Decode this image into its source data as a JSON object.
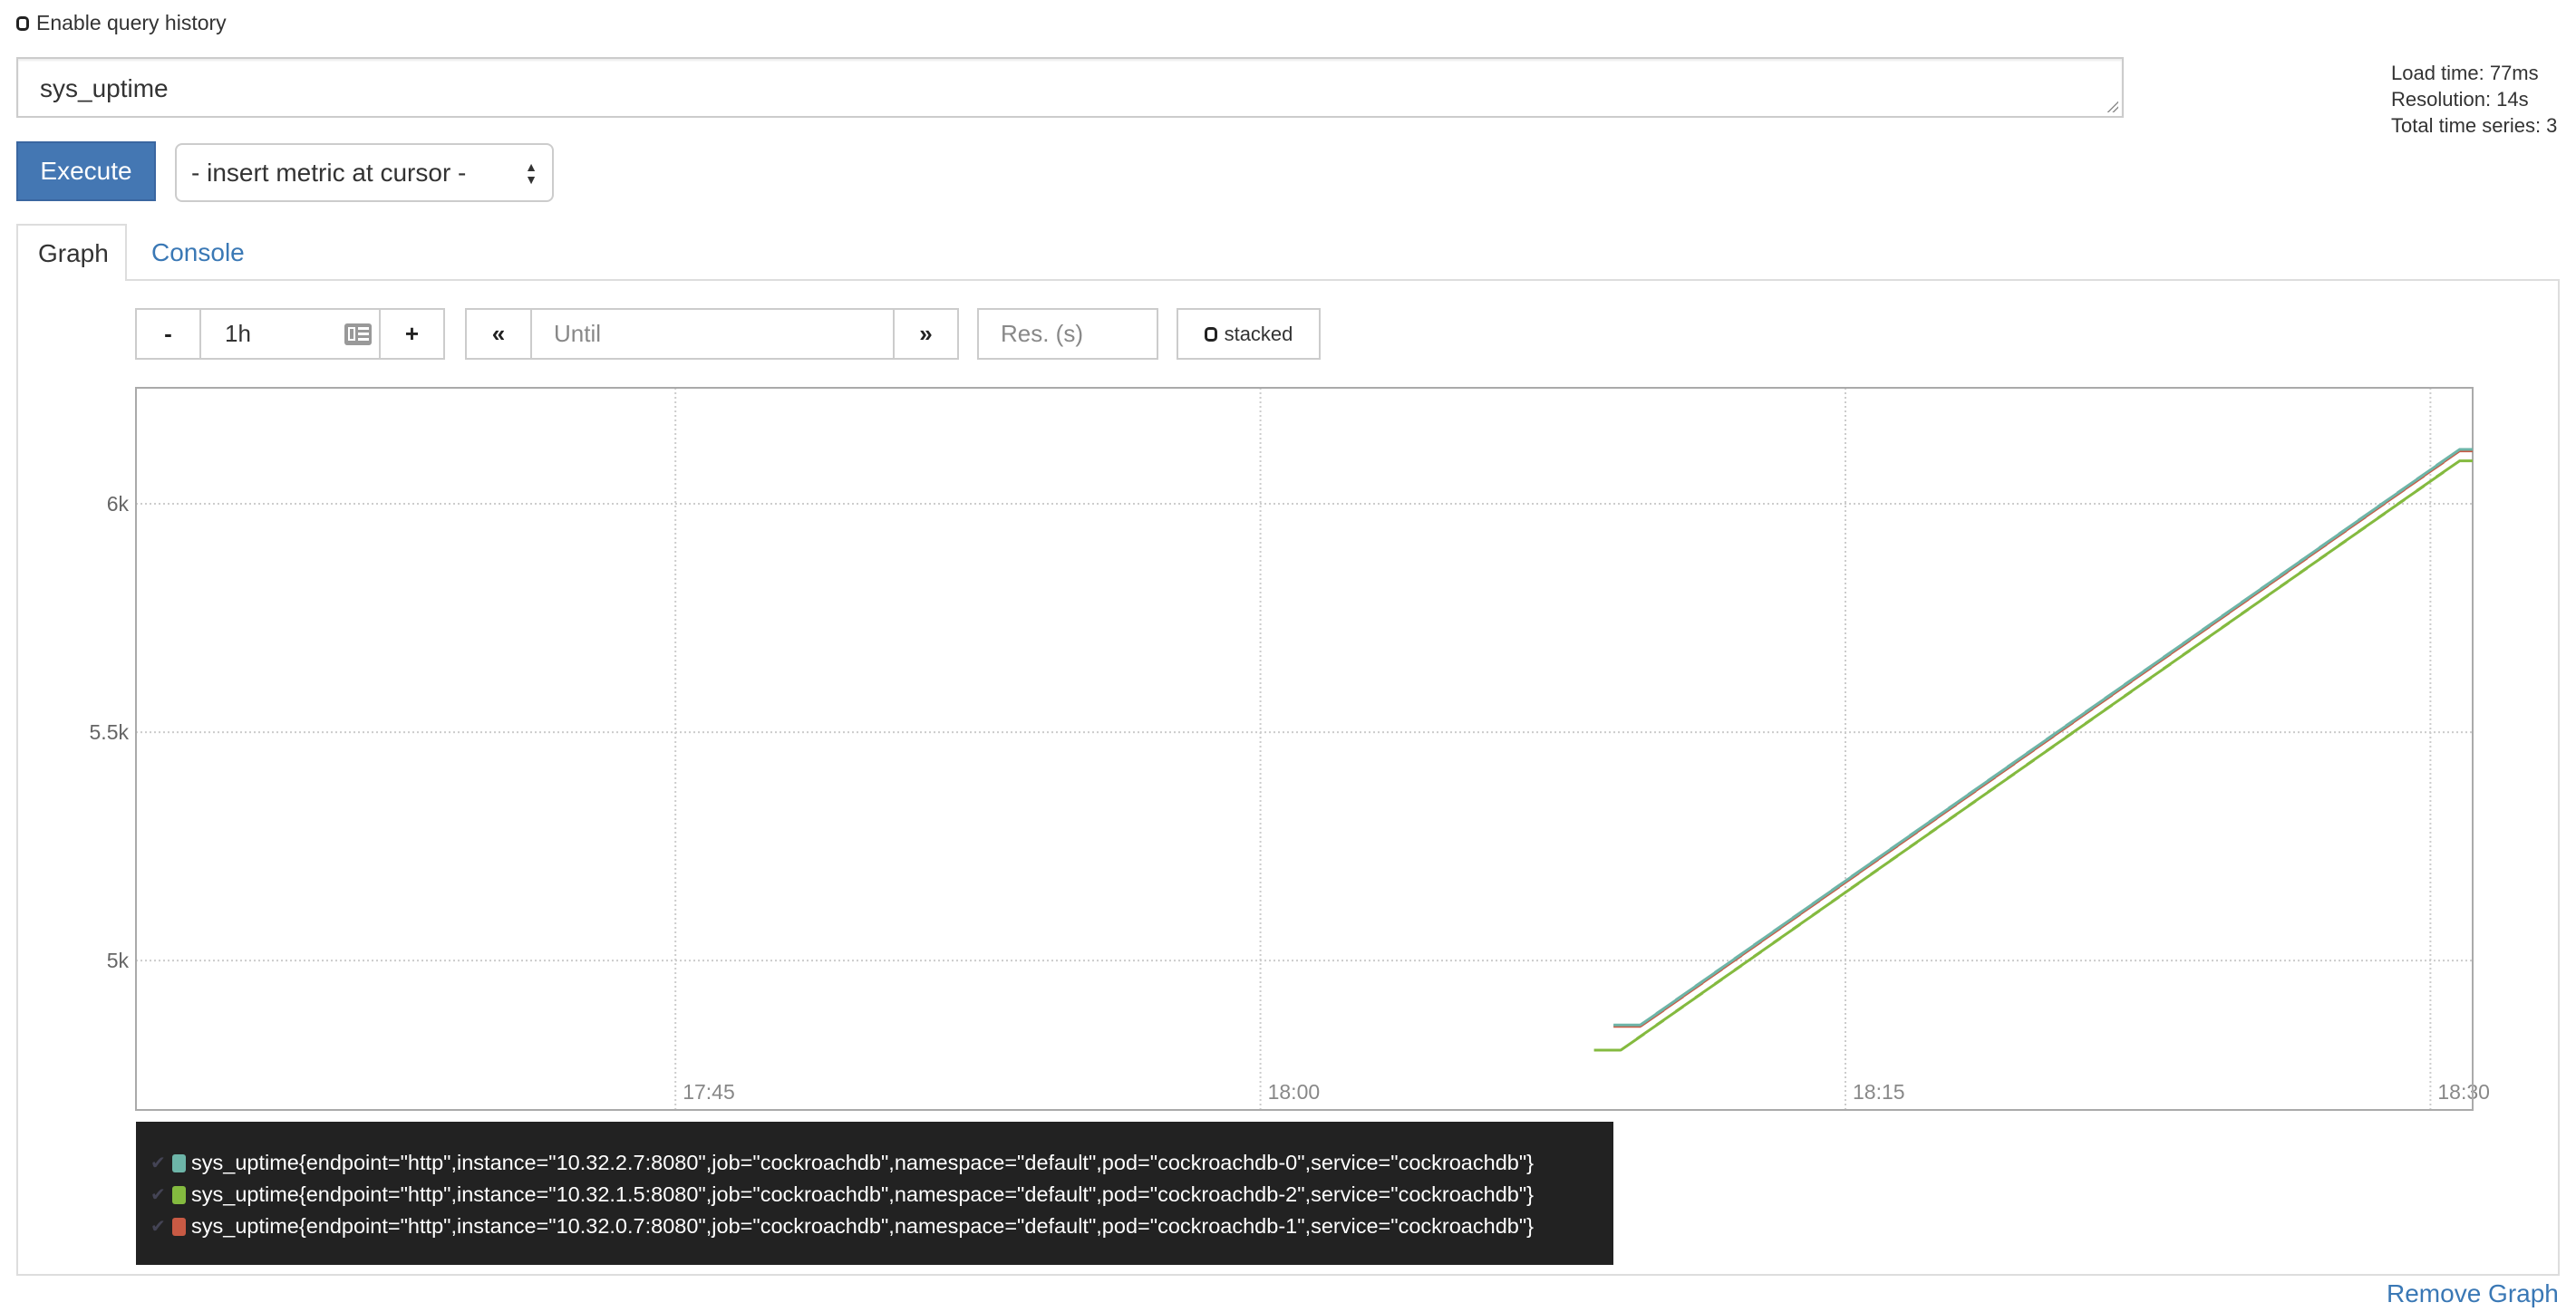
{
  "history": {
    "label": "Enable query history",
    "checked": false
  },
  "query": {
    "value": "sys_uptime"
  },
  "stats": {
    "load_time": "Load time: 77ms",
    "resolution": "Resolution: 14s",
    "total_series": "Total time series: 3"
  },
  "execute_label": "Execute",
  "metric_select": {
    "selected": "- insert metric at cursor -"
  },
  "tabs": [
    {
      "label": "Graph",
      "active": true
    },
    {
      "label": "Console",
      "active": false
    }
  ],
  "controls": {
    "minus": "-",
    "range": "1h",
    "plus": "+",
    "back": "«",
    "until_placeholder": "Until",
    "forward": "»",
    "res_placeholder": "Res. (s)",
    "stacked_label": "stacked"
  },
  "remove_label": "Remove Graph",
  "chart_data": {
    "type": "line",
    "grid": true,
    "xlim": [
      "17:31:10",
      "18:31:05"
    ],
    "ylim": [
      4673,
      6254
    ],
    "x_ticks": [
      "17:45",
      "18:00",
      "18:15",
      "18:30"
    ],
    "y_ticks": [
      {
        "value": 5000,
        "label": "5k"
      },
      {
        "value": 5500,
        "label": "5.5k"
      },
      {
        "value": 6000,
        "label": "6k"
      }
    ],
    "legend_position": "bottom",
    "x": [
      "18:09:15",
      "18:09:45",
      "18:10:15",
      "18:10:45",
      "18:11:15",
      "18:11:45",
      "18:12:15",
      "18:12:45",
      "18:13:15",
      "18:13:45",
      "18:14:15",
      "18:14:45",
      "18:15:15",
      "18:15:45",
      "18:16:15",
      "18:16:45",
      "18:17:15",
      "18:17:45",
      "18:18:15",
      "18:18:45",
      "18:19:15",
      "18:19:45",
      "18:20:15",
      "18:20:45",
      "18:21:15",
      "18:21:45",
      "18:22:15",
      "18:22:45",
      "18:23:15",
      "18:23:45",
      "18:24:15",
      "18:24:45",
      "18:25:15",
      "18:25:45",
      "18:26:15",
      "18:26:45",
      "18:27:15",
      "18:27:45",
      "18:28:15",
      "18:28:45",
      "18:29:15",
      "18:29:45",
      "18:30:15",
      "18:30:45"
    ],
    "series": [
      {
        "name": "sys_uptime{endpoint=\"http\",instance=\"10.32.2.7:8080\",job=\"cockroachdb\",namespace=\"default\",pod=\"cockroachdb-0\",service=\"cockroachdb\"}",
        "color": "#6db5a8",
        "values": [
          null,
          4859,
          4889,
          4919,
          4949,
          4979,
          5009,
          5039,
          5069,
          5099,
          5129,
          5159,
          5189,
          5219,
          5249,
          5279,
          5309,
          5339,
          5369,
          5399,
          5429,
          5459,
          5489,
          5519,
          5549,
          5579,
          5609,
          5639,
          5669,
          5699,
          5729,
          5759,
          5789,
          5819,
          5849,
          5879,
          5909,
          5939,
          5969,
          5999,
          6029,
          6059,
          6089,
          6119
        ]
      },
      {
        "name": "sys_uptime{endpoint=\"http\",instance=\"10.32.1.5:8080\",job=\"cockroachdb\",namespace=\"default\",pod=\"cockroachdb-2\",service=\"cockroachdb\"}",
        "color": "#84ba3f",
        "values": [
          4804,
          4834,
          4864,
          4894,
          4924,
          4954,
          4984,
          5014,
          5044,
          5074,
          5104,
          5134,
          5164,
          5194,
          5224,
          5254,
          5284,
          5314,
          5344,
          5374,
          5404,
          5434,
          5464,
          5494,
          5524,
          5554,
          5584,
          5614,
          5644,
          5674,
          5704,
          5734,
          5764,
          5794,
          5824,
          5854,
          5884,
          5914,
          5944,
          5974,
          6004,
          6034,
          6064,
          6094
        ]
      },
      {
        "name": "sys_uptime{endpoint=\"http\",instance=\"10.32.0.7:8080\",job=\"cockroachdb\",namespace=\"default\",pod=\"cockroachdb-1\",service=\"cockroachdb\"}",
        "color": "#c85a44",
        "values": [
          null,
          4856,
          4886,
          4916,
          4946,
          4976,
          5006,
          5036,
          5066,
          5096,
          5126,
          5156,
          5186,
          5216,
          5246,
          5276,
          5306,
          5336,
          5366,
          5396,
          5426,
          5456,
          5486,
          5516,
          5546,
          5576,
          5606,
          5636,
          5666,
          5696,
          5726,
          5756,
          5786,
          5816,
          5846,
          5876,
          5906,
          5936,
          5966,
          5996,
          6026,
          6056,
          6086,
          6116
        ]
      }
    ]
  }
}
